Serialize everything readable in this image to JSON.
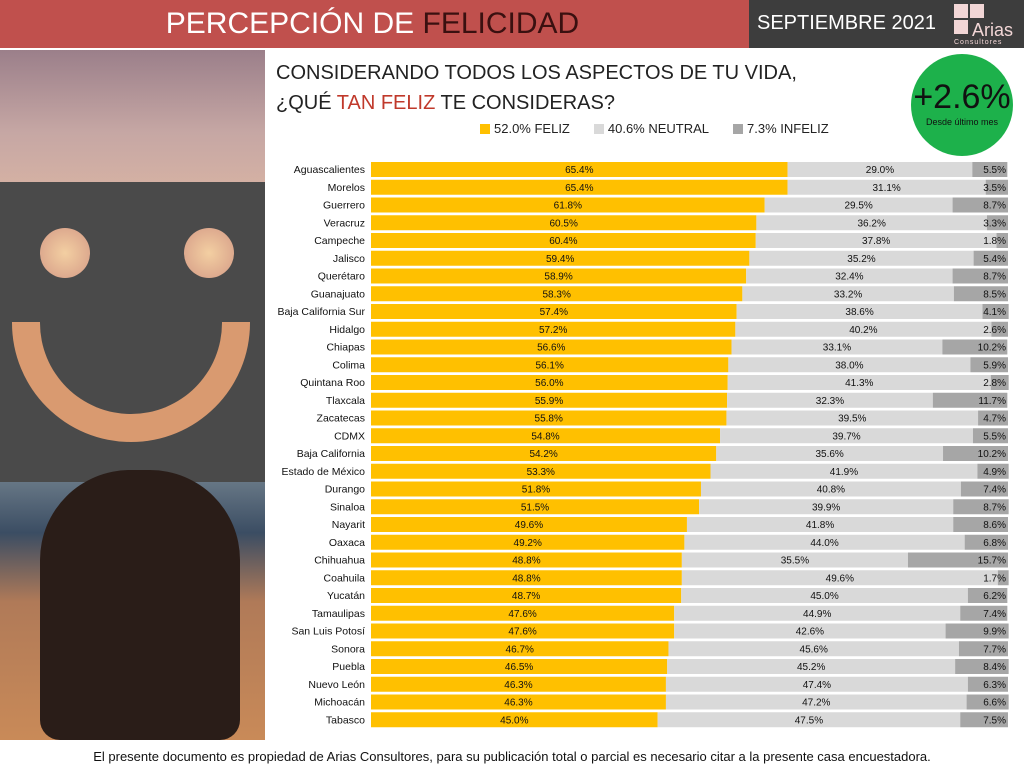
{
  "header": {
    "title_part1": "PERCEPCIÓN DE ",
    "title_part2": "FELICIDAD",
    "month": "SEPTIEMBRE 2021",
    "logo_name": "Arias",
    "logo_sub": "Consultores"
  },
  "question": {
    "line1": "CONSIDERANDO TODOS LOS ASPECTOS DE TU VIDA,",
    "line2_a": "¿QUÉ ",
    "line2_b": "TAN FELIZ",
    "line2_c": " TE CONSIDERAS?"
  },
  "badge": {
    "value": "+2.6%",
    "label": "Desde último mes",
    "color": "#1db14b"
  },
  "footer": "El presente documento es propiedad de Arias Consultores, para su publicación total o parcial es necesario citar a la presente casa encuestadora.",
  "chart_data": {
    "type": "bar",
    "stacked": true,
    "orientation": "horizontal",
    "xlim": [
      0,
      100
    ],
    "legend": [
      "52.0% FELIZ",
      "40.6% NEUTRAL",
      "7.3% INFELIZ"
    ],
    "legend_placement": "top",
    "colors": [
      "#ffc000",
      "#d9d9d9",
      "#a6a6a6"
    ],
    "categories": [
      "Aguascalientes",
      "Morelos",
      "Guerrero",
      "Veracruz",
      "Campeche",
      "Jalisco",
      "Querétaro",
      "Guanajuato",
      "Baja California Sur",
      "Hidalgo",
      "Chiapas",
      "Colima",
      "Quintana Roo",
      "Tlaxcala",
      "Zacatecas",
      "CDMX",
      "Baja California",
      "Estado de México",
      "Durango",
      "Sinaloa",
      "Nayarit",
      "Oaxaca",
      "Chihuahua",
      "Coahuila",
      "Yucatán",
      "Tamaulipas",
      "San Luis Potosí",
      "Sonora",
      "Puebla",
      "Nuevo León",
      "Michoacán",
      "Tabasco"
    ],
    "series": [
      {
        "name": "FELIZ",
        "values": [
          65.4,
          65.4,
          61.8,
          60.5,
          60.4,
          59.4,
          58.9,
          58.3,
          57.4,
          57.2,
          56.6,
          56.1,
          56.0,
          55.9,
          55.8,
          54.8,
          54.2,
          53.3,
          51.8,
          51.5,
          49.6,
          49.2,
          48.8,
          48.8,
          48.7,
          47.6,
          47.6,
          46.7,
          46.5,
          46.3,
          46.3,
          45.0
        ]
      },
      {
        "name": "NEUTRAL",
        "values": [
          29.0,
          31.1,
          29.5,
          36.2,
          37.8,
          35.2,
          32.4,
          33.2,
          38.6,
          40.2,
          33.1,
          38.0,
          41.3,
          32.3,
          39.5,
          39.7,
          35.6,
          41.9,
          40.8,
          39.9,
          41.8,
          44.0,
          35.5,
          49.6,
          45.0,
          44.9,
          42.6,
          45.6,
          45.2,
          47.4,
          47.2,
          47.5
        ]
      },
      {
        "name": "INFELIZ",
        "values": [
          5.5,
          3.5,
          8.7,
          3.3,
          1.8,
          5.4,
          8.7,
          8.5,
          4.1,
          2.6,
          10.2,
          5.9,
          2.8,
          11.7,
          4.7,
          5.5,
          10.2,
          4.9,
          7.4,
          8.7,
          8.6,
          6.8,
          15.7,
          1.7,
          6.2,
          7.4,
          9.9,
          7.7,
          8.4,
          6.3,
          6.6,
          7.5
        ]
      }
    ]
  }
}
